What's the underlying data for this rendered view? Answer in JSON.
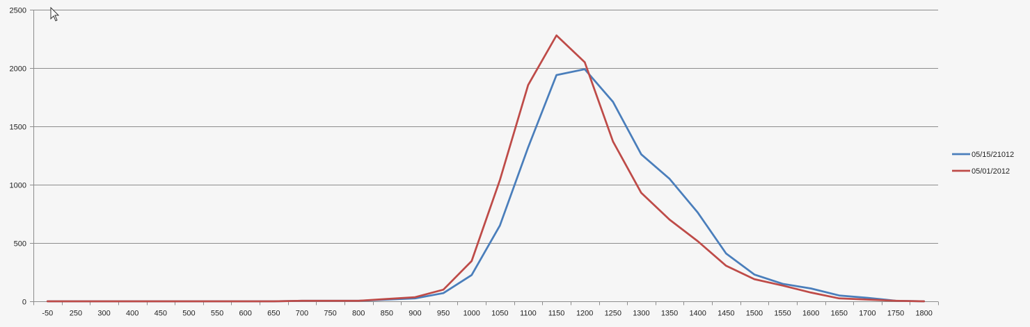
{
  "chart_data": {
    "type": "line",
    "title": "",
    "xlabel": "",
    "ylabel": "",
    "categories": [
      "-50",
      "250",
      "300",
      "400",
      "450",
      "500",
      "550",
      "600",
      "650",
      "700",
      "750",
      "800",
      "850",
      "900",
      "950",
      "1000",
      "1050",
      "1100",
      "1150",
      "1200",
      "1250",
      "1300",
      "1350",
      "1400",
      "1450",
      "1500",
      "1550",
      "1600",
      "1650",
      "1700",
      "1750",
      "1800"
    ],
    "ylim": [
      0,
      2500
    ],
    "yticks": [
      0,
      500,
      1000,
      1500,
      2000,
      2500
    ],
    "grid": true,
    "legend_position": "right",
    "series": [
      {
        "name": "05/15/21012",
        "color": "#4a7ebb",
        "values": [
          0,
          0,
          0,
          0,
          0,
          0,
          0,
          0,
          0,
          5,
          5,
          5,
          15,
          25,
          70,
          225,
          650,
          1320,
          1940,
          1990,
          1710,
          1260,
          1050,
          760,
          410,
          230,
          150,
          110,
          50,
          30,
          5,
          0
        ]
      },
      {
        "name": "05/01/2012",
        "color": "#be4b48",
        "values": [
          0,
          0,
          0,
          0,
          0,
          0,
          0,
          0,
          0,
          5,
          5,
          5,
          20,
          35,
          100,
          345,
          1040,
          1855,
          2280,
          2050,
          1370,
          930,
          700,
          515,
          305,
          190,
          135,
          75,
          25,
          15,
          5,
          0
        ]
      }
    ]
  }
}
